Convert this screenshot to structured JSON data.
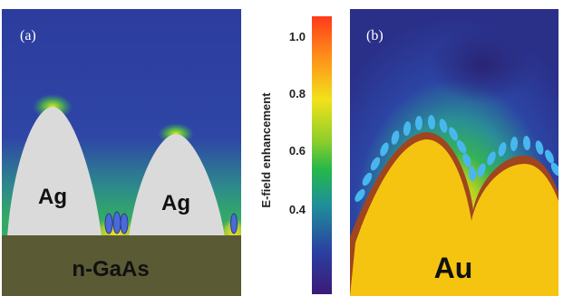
{
  "panels": {
    "a": {
      "label": "(a)",
      "metal_left_label": "Ag",
      "metal_right_label": "Ag",
      "substrate_label": "n-GaAs"
    },
    "b": {
      "label": "(b)",
      "metal_label": "Au"
    }
  },
  "colorbar": {
    "title": "E-field enhancement",
    "ticks": [
      "1.0",
      "0.8",
      "0.6",
      "0.4"
    ],
    "colors": {
      "top": "#ff3a1a",
      "orange": "#ff8c1a",
      "yellow": "#f2e21a",
      "green": "#25b84a",
      "teal": "#1f8f9a",
      "blue": "#2a3fa0",
      "bottom": "#3c1a78"
    }
  },
  "colors": {
    "background_field": "#2c3aa0",
    "silver": "#d8d8d8",
    "gold": "#f5c410",
    "gaas": "#5a5a34",
    "gold_edge": "#a0451e",
    "ellipse_blue": "#4a6ad8",
    "ellipse_cyan": "#49b7ef"
  }
}
